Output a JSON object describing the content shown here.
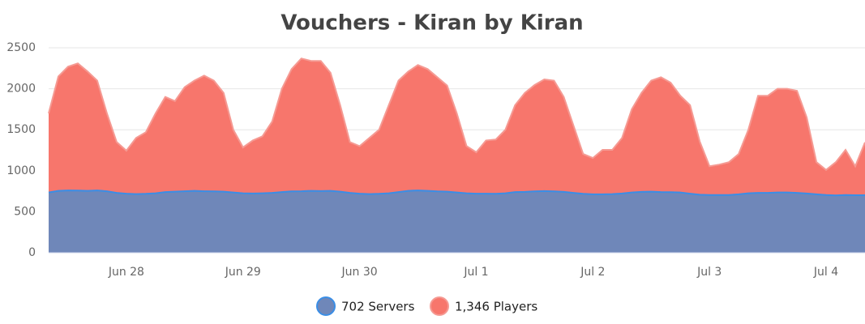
{
  "chart_data": {
    "type": "area",
    "title": "Vouchers - Kiran by Kiran",
    "categories": [
      null,
      null,
      null,
      null,
      null,
      null,
      null,
      null,
      "Jun 28",
      null,
      null,
      null,
      null,
      null,
      null,
      null,
      null,
      null,
      null,
      null,
      "Jun 29",
      null,
      null,
      null,
      null,
      null,
      null,
      null,
      null,
      null,
      null,
      null,
      "Jun 30",
      null,
      null,
      null,
      null,
      null,
      null,
      null,
      null,
      null,
      null,
      null,
      "Jul 1",
      null,
      null,
      null,
      null,
      null,
      null,
      null,
      null,
      null,
      null,
      null,
      "Jul 2",
      null,
      null,
      null,
      null,
      null,
      null,
      null,
      null,
      null,
      null,
      null,
      "Jul 3",
      null,
      null,
      null,
      null,
      null,
      null,
      null,
      null,
      null,
      null,
      null,
      "Jul 4",
      null,
      null,
      null,
      null
    ],
    "series": [
      {
        "name": "1,346 Players",
        "color": "#f7766c",
        "line_color": "#f59a93",
        "values": [
          1700,
          2150,
          2270,
          2310,
          2210,
          2100,
          1700,
          1350,
          1245,
          1400,
          1470,
          1700,
          1900,
          1850,
          2020,
          2100,
          2160,
          2100,
          1950,
          1500,
          1285,
          1370,
          1420,
          1600,
          2000,
          2240,
          2370,
          2340,
          2340,
          2195,
          1800,
          1350,
          1300,
          1400,
          1500,
          1800,
          2100,
          2210,
          2290,
          2240,
          2140,
          2040,
          1700,
          1300,
          1225,
          1370,
          1380,
          1500,
          1800,
          1950,
          2045,
          2115,
          2100,
          1900,
          1550,
          1205,
          1155,
          1255,
          1255,
          1400,
          1750,
          1950,
          2100,
          2140,
          2075,
          1915,
          1800,
          1355,
          1055,
          1075,
          1105,
          1205,
          1500,
          1915,
          1915,
          2000,
          2000,
          1975,
          1650,
          1105,
          1010,
          1105,
          1255,
          1055,
          1346
        ]
      },
      {
        "name": "702 Servers",
        "color": "#6f87b9",
        "line_color": "#3a8ee6",
        "values": [
          735,
          755,
          760,
          758,
          755,
          760,
          750,
          730,
          720,
          715,
          718,
          725,
          740,
          745,
          750,
          755,
          750,
          748,
          745,
          735,
          725,
          722,
          725,
          730,
          740,
          748,
          750,
          755,
          752,
          755,
          745,
          730,
          720,
          715,
          718,
          725,
          740,
          755,
          760,
          755,
          748,
          745,
          735,
          725,
          720,
          720,
          718,
          725,
          740,
          742,
          748,
          752,
          748,
          742,
          730,
          718,
          712,
          712,
          715,
          722,
          735,
          742,
          745,
          740,
          738,
          735,
          720,
          708,
          705,
          705,
          705,
          712,
          725,
          730,
          730,
          735,
          735,
          730,
          722,
          712,
          705,
          700,
          705,
          702,
          702
        ]
      }
    ],
    "legend_order": [
      1,
      0
    ],
    "ylim": [
      0,
      2500
    ],
    "yticks": [
      0,
      500,
      1000,
      1500,
      2000,
      2500
    ],
    "grid": true
  }
}
